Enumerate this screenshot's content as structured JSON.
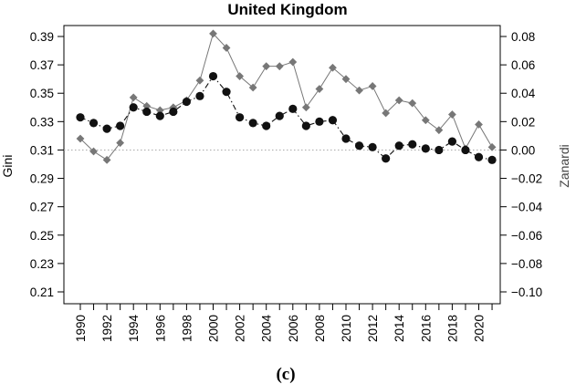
{
  "chart_data": {
    "type": "line",
    "title": "United Kingdom",
    "caption": "(c)",
    "x": [
      1990,
      1991,
      1992,
      1993,
      1994,
      1995,
      1996,
      1997,
      1998,
      1999,
      2000,
      2001,
      2002,
      2003,
      2004,
      2005,
      2006,
      2007,
      2008,
      2009,
      2010,
      2011,
      2012,
      2013,
      2014,
      2015,
      2016,
      2017,
      2018,
      2019,
      2020,
      2021
    ],
    "x_tick_labels": [
      "1990",
      "1992",
      "1994",
      "1996",
      "1998",
      "2000",
      "2002",
      "2004",
      "2006",
      "2008",
      "2010",
      "2012",
      "2014",
      "2016",
      "2018",
      "2020"
    ],
    "ylabel_left": "Gini",
    "ylabel_right": "Zanardi",
    "ylim_left": [
      0.21,
      0.39
    ],
    "ylim_right": [
      -0.1,
      0.08
    ],
    "y_ticks_left": [
      "0.21",
      "0.23",
      "0.25",
      "0.27",
      "0.29",
      "0.31",
      "0.33",
      "0.35",
      "0.37",
      "0.39"
    ],
    "y_ticks_right": [
      "−0.10",
      "−0.08",
      "−0.06",
      "−0.04",
      "−0.02",
      "0.00",
      "0.02",
      "0.04",
      "0.06",
      "0.08"
    ],
    "reference_line": {
      "axis": "right",
      "value": 0.0,
      "style": "dotted"
    },
    "grid": false,
    "series": [
      {
        "axis": "left",
        "marker": "circle",
        "line": "dash-dot",
        "color": "#111111",
        "values": [
          0.333,
          0.329,
          0.325,
          0.327,
          0.34,
          0.337,
          0.334,
          0.337,
          0.344,
          0.348,
          0.362,
          0.351,
          0.333,
          0.329,
          0.327,
          0.334,
          0.339,
          0.327,
          0.33,
          0.331,
          0.318,
          0.313,
          0.312,
          0.304,
          0.313,
          0.314,
          0.311,
          0.31,
          0.316,
          0.31,
          0.305,
          0.303
        ]
      },
      {
        "axis": "right",
        "marker": "diamond",
        "line": "solid",
        "color": "#777777",
        "values": [
          0.008,
          -0.001,
          -0.007,
          0.005,
          0.037,
          0.031,
          0.028,
          0.03,
          0.035,
          0.049,
          0.082,
          0.072,
          0.052,
          0.044,
          0.059,
          0.059,
          0.062,
          0.03,
          0.043,
          0.058,
          0.05,
          0.042,
          0.045,
          0.026,
          0.035,
          0.033,
          0.021,
          0.014,
          0.025,
          0.001,
          0.018,
          0.002
        ]
      }
    ]
  }
}
